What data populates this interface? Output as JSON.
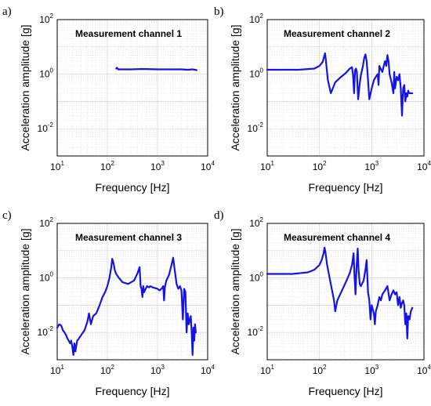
{
  "figure": {
    "colors": {
      "series": "#1414e6",
      "grid": "#d4d4d4",
      "frame": "#000000",
      "background": "#ffffff"
    }
  },
  "chart_data": [
    {
      "panel": "a)",
      "type": "line",
      "title": "Measurement channel 1",
      "xlabel": "Frequency [Hz]",
      "ylabel": "Acceleration amplitude [g]",
      "xscale": "log",
      "yscale": "log",
      "xlim": [
        10,
        10000
      ],
      "ylim": [
        0.001,
        100
      ],
      "x_ticks": [
        "10^1",
        "10^2",
        "10^3",
        "10^4"
      ],
      "y_ticks": [
        "10^-2",
        "10^0",
        "10^2"
      ],
      "grid": true,
      "series": [
        {
          "x": [
            150,
            155,
            160,
            165,
            200,
            300,
            500,
            1000,
            2000,
            3000,
            4000,
            5000,
            6000
          ],
          "y": [
            1.6,
            1.72,
            1.6,
            1.5,
            1.5,
            1.5,
            1.55,
            1.5,
            1.5,
            1.5,
            1.45,
            1.5,
            1.4
          ]
        }
      ]
    },
    {
      "panel": "b)",
      "type": "line",
      "title": "Measurement channel 2",
      "xlabel": "Frequency [Hz]",
      "ylabel": "Acceleration amplitude [g]",
      "xscale": "log",
      "yscale": "log",
      "xlim": [
        10,
        10000
      ],
      "ylim": [
        0.001,
        100
      ],
      "x_ticks": [
        "10^1",
        "10^2",
        "10^3",
        "10^4"
      ],
      "y_ticks": [
        "10^-2",
        "10^0",
        "10^2"
      ],
      "grid": true,
      "series": [
        {
          "x": [
            10,
            40,
            80,
            100,
            115,
            125,
            128,
            132,
            145,
            165,
            200,
            260,
            320,
            380,
            420,
            440,
            460,
            480,
            500,
            520,
            550,
            590,
            620,
            680,
            720,
            760,
            800,
            830,
            900,
            1000,
            1100,
            1200,
            1300,
            1350,
            1400,
            1500,
            1600,
            1700,
            1800,
            1900,
            2000,
            2100,
            2200,
            2400,
            2600,
            2700,
            2800,
            3000,
            3200,
            3400,
            3600,
            3800,
            4000,
            4200,
            4400,
            4600,
            4800,
            5000,
            5200,
            5500,
            6000
          ],
          "y": [
            1.45,
            1.45,
            1.6,
            2.0,
            2.8,
            5.0,
            5.8,
            3.5,
            0.6,
            0.2,
            0.5,
            0.8,
            1.1,
            1.6,
            1.8,
            0.9,
            0.2,
            1.4,
            1.6,
            1.2,
            0.12,
            0.45,
            0.9,
            2.0,
            4.0,
            5.3,
            3.0,
            1.2,
            0.12,
            0.3,
            0.6,
            0.8,
            1.0,
            0.4,
            2.0,
            1.5,
            1.2,
            2.0,
            3.0,
            2.0,
            5.0,
            3.0,
            1.0,
            0.5,
            0.2,
            1.2,
            0.3,
            0.8,
            0.6,
            1.0,
            0.3,
            0.03,
            0.3,
            0.4,
            0.1,
            0.2,
            0.15,
            0.25,
            0.2,
            0.2,
            0.2
          ]
        }
      ]
    },
    {
      "panel": "c)",
      "type": "line",
      "title": "Measurement channel 3",
      "xlabel": "Frequency [Hz]",
      "ylabel": "Acceleration amplitude [g]",
      "xscale": "log",
      "yscale": "log",
      "xlim": [
        10,
        10000
      ],
      "ylim": [
        0.001,
        100
      ],
      "x_ticks": [
        "10^1",
        "10^2",
        "10^3",
        "10^4"
      ],
      "y_ticks": [
        "10^-2",
        "10^0",
        "10^2"
      ],
      "grid": true,
      "series": [
        {
          "x": [
            10,
            11,
            12,
            13,
            14,
            15,
            16,
            17,
            18,
            19,
            20,
            21,
            22,
            23,
            25,
            27,
            30,
            35,
            40,
            43,
            47,
            52,
            60,
            70,
            80,
            90,
            100,
            110,
            120,
            125,
            130,
            135,
            140,
            150,
            170,
            200,
            260,
            340,
            400,
            440,
            460,
            480,
            500,
            520,
            540,
            580,
            620,
            680,
            720,
            800,
            1000,
            1100,
            1200,
            1300,
            1350,
            1400,
            1500,
            1700,
            1900,
            2050,
            2200,
            2400,
            2600,
            2800,
            3000,
            3200,
            3400,
            3600,
            3800,
            4000,
            4200,
            4400,
            4600,
            4800,
            5000,
            5200,
            5400,
            5600,
            5800
          ],
          "y": [
            0.015,
            0.02,
            0.018,
            0.012,
            0.01,
            0.008,
            0.006,
            0.005,
            0.004,
            0.005,
            0.003,
            0.0015,
            0.004,
            0.002,
            0.005,
            0.006,
            0.008,
            0.012,
            0.025,
            0.05,
            0.02,
            0.04,
            0.05,
            0.1,
            0.2,
            0.3,
            0.5,
            1.0,
            2.5,
            5.0,
            4.0,
            3.0,
            2.0,
            1.4,
            1.0,
            0.7,
            0.6,
            0.8,
            1.5,
            2.5,
            0.5,
            0.4,
            0.2,
            0.5,
            0.3,
            0.4,
            0.5,
            0.45,
            0.5,
            0.45,
            0.4,
            0.35,
            0.4,
            0.5,
            0.15,
            0.45,
            0.8,
            1.3,
            3.0,
            5.5,
            2.0,
            0.6,
            0.4,
            0.5,
            0.35,
            0.03,
            0.4,
            0.3,
            0.01,
            0.05,
            0.02,
            0.03,
            0.04,
            0.01,
            0.0015,
            0.015,
            0.005,
            0.02,
            0.01
          ]
        }
      ]
    },
    {
      "panel": "d)",
      "type": "line",
      "title": "Measurement channel 4",
      "xlabel": "Frequency [Hz]",
      "ylabel": "Acceleration amplitude [g]",
      "xscale": "log",
      "yscale": "log",
      "xlim": [
        10,
        10000
      ],
      "ylim": [
        0.001,
        100
      ],
      "x_ticks": [
        "10^1",
        "10^2",
        "10^3",
        "10^4"
      ],
      "y_ticks": [
        "10^-2",
        "10^0",
        "10^2"
      ],
      "grid": true,
      "series": [
        {
          "x": [
            10,
            30,
            60,
            80,
            100,
            110,
            120,
            125,
            130,
            140,
            160,
            190,
            200,
            220,
            260,
            320,
            380,
            420,
            450,
            470,
            490,
            510,
            540,
            560,
            590,
            620,
            700,
            760,
            800,
            850,
            900,
            950,
            1000,
            1100,
            1150,
            1200,
            1300,
            1400,
            1500,
            1600,
            1800,
            2000,
            2200,
            2400,
            2600,
            2800,
            3000,
            3200,
            3400,
            3600,
            3800,
            4000,
            4200,
            4400,
            4600,
            4800,
            5000,
            5300,
            5600,
            6000
          ],
          "y": [
            1.4,
            1.4,
            1.6,
            2.0,
            3.0,
            4.5,
            8.0,
            13.0,
            9.0,
            3.0,
            0.8,
            0.15,
            0.06,
            0.15,
            0.3,
            0.7,
            1.5,
            3.0,
            8.0,
            1.0,
            0.25,
            2.0,
            12.0,
            2.0,
            0.6,
            0.5,
            0.8,
            2.0,
            4.5,
            0.3,
            0.15,
            0.03,
            0.1,
            0.05,
            0.02,
            0.06,
            0.1,
            0.2,
            0.15,
            0.25,
            0.35,
            0.5,
            0.15,
            0.25,
            0.35,
            0.25,
            0.3,
            0.1,
            0.2,
            0.08,
            0.12,
            0.15,
            0.1,
            0.02,
            0.05,
            0.006,
            0.04,
            0.03,
            0.06,
            0.08
          ]
        }
      ]
    }
  ]
}
